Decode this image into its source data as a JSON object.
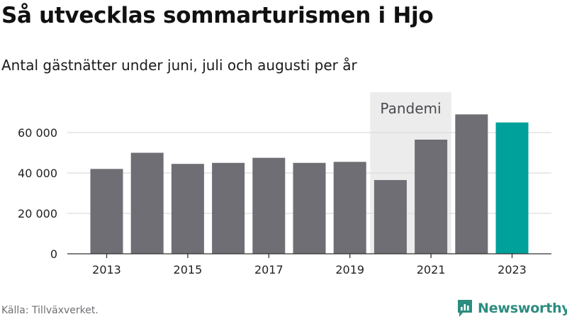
{
  "title": "Så utvecklas sommarturismen i Hjo",
  "subtitle": "Antal gästnätter under juni, juli och augusti per år",
  "source": "Källa: Tillväxverket.",
  "brand": "Newsworthy",
  "colors": {
    "bar": "#6f6e74",
    "highlight": "#00a19a",
    "shade": "#ececec",
    "grid": "#dcdcdc",
    "axis": "#333333",
    "brand": "#2c8c80"
  },
  "chart_data": {
    "type": "bar",
    "categories": [
      "2013",
      "2014",
      "2015",
      "2016",
      "2017",
      "2018",
      "2019",
      "2020",
      "2021",
      "2022",
      "2023"
    ],
    "values": [
      42000,
      50000,
      44500,
      45000,
      47500,
      45000,
      45500,
      36500,
      56500,
      69000,
      65000
    ],
    "highlight_index": 10,
    "xticks": [
      "2013",
      "2015",
      "2017",
      "2019",
      "2021",
      "2023"
    ],
    "yticks": [
      0,
      20000,
      40000,
      60000
    ],
    "ytick_labels": [
      "0",
      "20 000",
      "40 000",
      "60 000"
    ],
    "ylim": [
      0,
      80000
    ],
    "grid": true,
    "annotation": {
      "label": "Pandemi",
      "from": "2020",
      "to": "2021"
    }
  }
}
